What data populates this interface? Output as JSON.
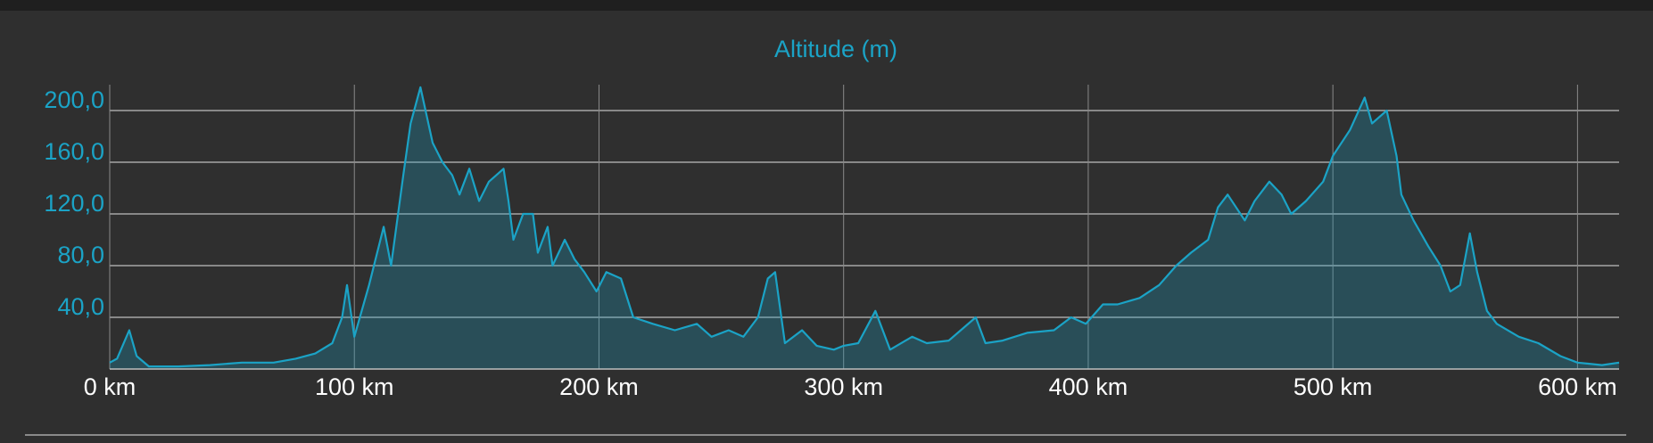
{
  "chart_data": {
    "type": "area",
    "title": "Altitude (m)",
    "x": [
      0,
      3,
      8,
      11,
      16,
      28,
      41,
      54,
      67,
      76,
      84,
      91,
      95,
      97,
      100,
      106,
      112,
      115,
      120,
      123,
      127,
      132,
      136,
      140,
      143,
      147,
      151,
      155,
      161,
      163,
      165,
      169,
      173,
      175,
      179,
      181,
      186,
      190,
      194,
      199,
      203,
      209,
      214,
      222,
      231,
      240,
      246,
      253,
      259,
      265,
      269,
      272,
      276,
      283,
      289,
      296,
      300,
      306,
      313,
      319,
      328,
      334,
      343,
      354,
      358,
      365,
      375,
      386,
      393,
      399,
      406,
      412,
      421,
      429,
      436,
      442,
      449,
      453,
      457,
      464,
      468,
      474,
      479,
      483,
      489,
      496,
      500,
      507,
      513,
      516,
      522,
      526,
      528,
      533,
      539,
      544,
      548,
      552,
      556,
      559,
      563,
      567,
      576,
      584,
      593,
      600,
      610,
      617
    ],
    "values": [
      5,
      8,
      30,
      10,
      2,
      2,
      3,
      5,
      5,
      8,
      12,
      20,
      40,
      65,
      25,
      65,
      110,
      80,
      150,
      190,
      218,
      175,
      160,
      150,
      135,
      155,
      130,
      145,
      155,
      130,
      100,
      120,
      120,
      90,
      110,
      80,
      100,
      85,
      75,
      60,
      75,
      70,
      40,
      35,
      30,
      35,
      25,
      30,
      25,
      40,
      70,
      75,
      20,
      30,
      18,
      15,
      18,
      20,
      45,
      15,
      25,
      20,
      22,
      40,
      20,
      22,
      28,
      30,
      40,
      35,
      50,
      50,
      55,
      65,
      80,
      90,
      100,
      125,
      135,
      115,
      130,
      145,
      135,
      120,
      130,
      145,
      165,
      185,
      210,
      190,
      200,
      165,
      135,
      115,
      95,
      80,
      60,
      65,
      105,
      75,
      45,
      35,
      25,
      20,
      10,
      5,
      3,
      5
    ],
    "color": "#1ba3c6",
    "xlim": [
      0,
      617
    ],
    "ylim": [
      0,
      220
    ],
    "xticks": [
      {
        "value": 0,
        "label": "0 km"
      },
      {
        "value": 100,
        "label": "100 km"
      },
      {
        "value": 200,
        "label": "200 km"
      },
      {
        "value": 300,
        "label": "300 km"
      },
      {
        "value": 400,
        "label": "400 km"
      },
      {
        "value": 500,
        "label": "500 km"
      },
      {
        "value": 600,
        "label": "600 km"
      }
    ],
    "yticks": [
      {
        "value": 40,
        "label": "40,0"
      },
      {
        "value": 80,
        "label": "80,0"
      },
      {
        "value": 120,
        "label": "120,0"
      },
      {
        "value": 160,
        "label": "160,0"
      },
      {
        "value": 200,
        "label": "200,0"
      }
    ],
    "grid": true
  }
}
